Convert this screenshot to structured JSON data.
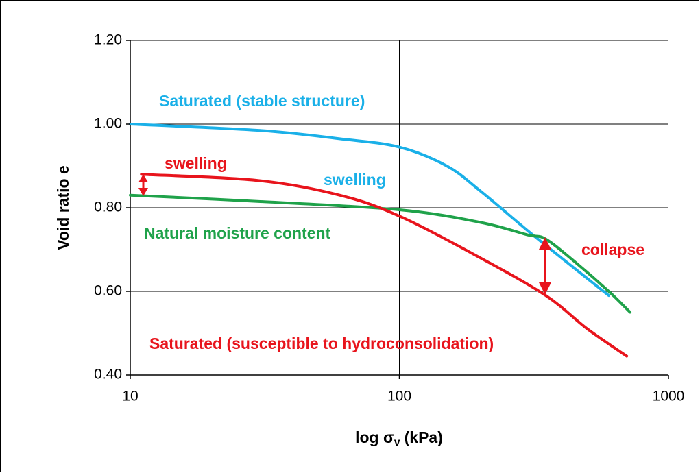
{
  "chart_data": {
    "type": "line",
    "xlabel": "log σ",
    "xlabel_subscript": "v",
    "xlabel_suffix": "(kPa)",
    "ylabel": "Void ratio e",
    "xscale": "log",
    "grid": true,
    "xlim": [
      10,
      1000
    ],
    "xticks": [
      10,
      100,
      1000
    ],
    "ylim": [
      0.4,
      1.2
    ],
    "yticks": [
      {
        "value": 0.4,
        "label": "0.40"
      },
      {
        "value": 0.6,
        "label": "0.60"
      },
      {
        "value": 0.8,
        "label": "0.80"
      },
      {
        "value": 1.0,
        "label": "1.00"
      },
      {
        "value": 1.2,
        "label": "1.20"
      }
    ],
    "series": [
      {
        "name": "Saturated (stable structure)",
        "color": "#1ab0e8",
        "x": [
          10,
          30,
          60,
          100,
          150,
          200,
          300,
          400,
          600
        ],
        "values": [
          1.0,
          0.985,
          0.965,
          0.945,
          0.9,
          0.84,
          0.745,
          0.68,
          0.59
        ]
      },
      {
        "name": "Natural moisture content",
        "color": "#1fa24a",
        "x": [
          10,
          30,
          100,
          200,
          300,
          350,
          450,
          600,
          720
        ],
        "values": [
          0.83,
          0.815,
          0.795,
          0.765,
          0.735,
          0.725,
          0.67,
          0.6,
          0.55
        ]
      },
      {
        "name": "Saturated (susceptible to hydroconsolidation)",
        "color": "#e8141c",
        "x": [
          11,
          30,
          60,
          100,
          200,
          350,
          500,
          700
        ],
        "values": [
          0.88,
          0.865,
          0.83,
          0.78,
          0.68,
          0.59,
          0.51,
          0.445
        ]
      }
    ],
    "annotations": [
      {
        "text": "swelling",
        "color": "#e8141c"
      },
      {
        "text": "swelling",
        "color": "#1ab0e8"
      },
      {
        "text": "collapse",
        "color": "#e8141c"
      }
    ]
  }
}
